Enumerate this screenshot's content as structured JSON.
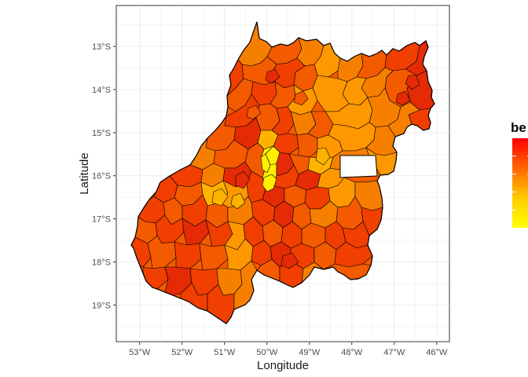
{
  "map": {
    "x_axis_title": "Longitude",
    "y_axis_title": "Latitude",
    "x_ticks": [
      {
        "value": -53,
        "label": "53°W"
      },
      {
        "value": -52,
        "label": "52°W"
      },
      {
        "value": -51,
        "label": "51°W"
      },
      {
        "value": -50,
        "label": "50°W"
      },
      {
        "value": -49,
        "label": "49°W"
      },
      {
        "value": -48,
        "label": "48°W"
      },
      {
        "value": -47,
        "label": "47°W"
      },
      {
        "value": -46,
        "label": "46°W"
      }
    ],
    "y_ticks": [
      {
        "value": -13,
        "label": "13°S"
      },
      {
        "value": -14,
        "label": "14°S"
      },
      {
        "value": -15,
        "label": "15°S"
      },
      {
        "value": -16,
        "label": "16°S"
      },
      {
        "value": -17,
        "label": "17°S"
      },
      {
        "value": -18,
        "label": "18°S"
      },
      {
        "value": -19,
        "label": "19°S"
      }
    ],
    "x_range": [
      -53.55,
      -45.7
    ],
    "y_range": [
      -19.85,
      -12.05
    ],
    "grid": true,
    "background": "#ffffff",
    "gridline_color": "#ebebeb",
    "border_color": "#333333",
    "legend": {
      "title": "be",
      "position": "right",
      "gradient_colors": [
        "#ff0000",
        "#ff6600",
        "#ffcc00",
        "#ffff00"
      ]
    },
    "fill_palette": {
      "red": "#e52a06",
      "red_orange": "#f03f00",
      "orange_red": "#f45a00",
      "orange": "#f77f00",
      "amber": "#ff9800",
      "gold": "#ffb300",
      "yellow": "#ffee00"
    },
    "no_data_fill": "#ffffff"
  }
}
